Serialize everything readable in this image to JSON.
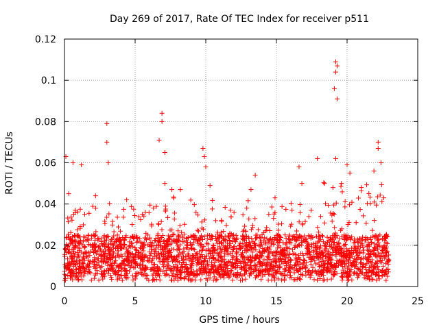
{
  "chart_data": {
    "type": "scatter",
    "title": "Day 269 of 2017, Rate Of TEC Index for receiver p511",
    "xlabel": "GPS time / hours",
    "ylabel": "ROTI / TECUs",
    "xlim": [
      0,
      25
    ],
    "ylim": [
      0,
      0.12
    ],
    "xticks": [
      0,
      5,
      10,
      15,
      20,
      25
    ],
    "xtick_labels": [
      "0",
      "5",
      "10",
      "15",
      "20",
      "25"
    ],
    "yticks": [
      0,
      0.02,
      0.04,
      0.06,
      0.08,
      0.1,
      0.12
    ],
    "ytick_labels": [
      "0",
      "0.02",
      "0.04",
      "0.06",
      "0.08",
      "0.1",
      "0.12"
    ],
    "grid": true,
    "marker": "+",
    "series": [
      {
        "name": "ROTI",
        "color": "#ff0000",
        "x_range": [
          0,
          23
        ],
        "baseline_band": [
          0.005,
          0.025
        ],
        "notable_points": [
          {
            "x": 0.1,
            "y": 0.063
          },
          {
            "x": 0.3,
            "y": 0.045
          },
          {
            "x": 0.6,
            "y": 0.06
          },
          {
            "x": 1.2,
            "y": 0.059
          },
          {
            "x": 2.2,
            "y": 0.044
          },
          {
            "x": 3.0,
            "y": 0.079
          },
          {
            "x": 3.0,
            "y": 0.07
          },
          {
            "x": 3.1,
            "y": 0.06
          },
          {
            "x": 4.4,
            "y": 0.042
          },
          {
            "x": 6.3,
            "y": 0.038
          },
          {
            "x": 6.7,
            "y": 0.071
          },
          {
            "x": 6.9,
            "y": 0.084
          },
          {
            "x": 6.9,
            "y": 0.08
          },
          {
            "x": 7.1,
            "y": 0.065
          },
          {
            "x": 7.1,
            "y": 0.05
          },
          {
            "x": 7.6,
            "y": 0.047
          },
          {
            "x": 8.2,
            "y": 0.047
          },
          {
            "x": 9.8,
            "y": 0.067
          },
          {
            "x": 9.9,
            "y": 0.063
          },
          {
            "x": 10.0,
            "y": 0.058
          },
          {
            "x": 10.3,
            "y": 0.049
          },
          {
            "x": 12.0,
            "y": 0.036
          },
          {
            "x": 12.9,
            "y": 0.038
          },
          {
            "x": 13.2,
            "y": 0.047
          },
          {
            "x": 13.5,
            "y": 0.054
          },
          {
            "x": 14.9,
            "y": 0.043
          },
          {
            "x": 16.6,
            "y": 0.058
          },
          {
            "x": 16.8,
            "y": 0.05
          },
          {
            "x": 17.9,
            "y": 0.062
          },
          {
            "x": 18.4,
            "y": 0.05
          },
          {
            "x": 19.0,
            "y": 0.048
          },
          {
            "x": 19.2,
            "y": 0.109
          },
          {
            "x": 19.3,
            "y": 0.107
          },
          {
            "x": 19.2,
            "y": 0.104
          },
          {
            "x": 19.1,
            "y": 0.096
          },
          {
            "x": 19.3,
            "y": 0.091
          },
          {
            "x": 19.2,
            "y": 0.062
          },
          {
            "x": 19.6,
            "y": 0.05
          },
          {
            "x": 20.0,
            "y": 0.059
          },
          {
            "x": 20.2,
            "y": 0.055
          },
          {
            "x": 21.0,
            "y": 0.048
          },
          {
            "x": 21.9,
            "y": 0.056
          },
          {
            "x": 22.2,
            "y": 0.07
          },
          {
            "x": 22.2,
            "y": 0.067
          },
          {
            "x": 22.4,
            "y": 0.06
          },
          {
            "x": 22.6,
            "y": 0.043
          }
        ]
      }
    ]
  }
}
